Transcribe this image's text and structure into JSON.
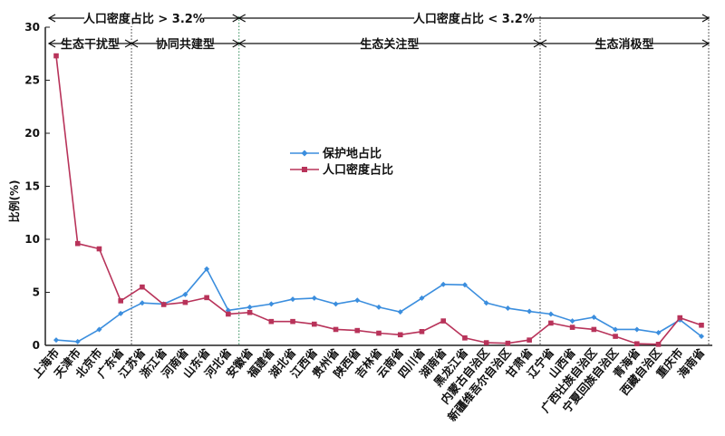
{
  "chart_data": {
    "type": "line",
    "ylabel": "比例(%)",
    "ylim": [
      0,
      30
    ],
    "yticks": [
      0,
      5,
      10,
      15,
      20,
      25,
      30
    ],
    "grid": false,
    "legend_placement": "center",
    "categories": [
      "上海市",
      "天津市",
      "北京市",
      "广东省",
      "江苏省",
      "浙江省",
      "河南省",
      "山东省",
      "河北省",
      "安徽省",
      "福建省",
      "湖北省",
      "江西省",
      "贵州省",
      "陕西省",
      "吉林省",
      "云南省",
      "四川省",
      "湖南省",
      "黑龙江省",
      "内蒙古自治区",
      "新疆维吾尔自治区",
      "甘肃省",
      "辽宁省",
      "山西省",
      "广西壮族自治区",
      "宁夏回族自治区",
      "青海省",
      "西藏自治区",
      "重庆市",
      "海南省"
    ],
    "series": [
      {
        "name": "保护地占比",
        "color": "#3b8ede",
        "marker": "diamond",
        "values": [
          0.5,
          0.35,
          1.5,
          3.0,
          4.0,
          3.9,
          4.8,
          7.2,
          3.3,
          3.6,
          3.9,
          4.35,
          4.45,
          3.9,
          4.25,
          3.6,
          3.15,
          4.45,
          5.75,
          5.7,
          4.0,
          3.5,
          3.2,
          2.95,
          2.3,
          2.65,
          1.5,
          1.5,
          1.2,
          2.4,
          0.85
        ]
      },
      {
        "name": "人口密度占比",
        "color": "#b8335a",
        "marker": "square",
        "values": [
          27.3,
          9.6,
          9.1,
          4.2,
          5.5,
          3.85,
          4.05,
          4.5,
          2.95,
          3.1,
          2.25,
          2.25,
          2.0,
          1.5,
          1.4,
          1.15,
          1.0,
          1.3,
          2.3,
          0.7,
          0.25,
          0.2,
          0.5,
          2.1,
          1.7,
          1.5,
          0.85,
          0.15,
          0.1,
          2.6,
          1.9
        ]
      }
    ],
    "groups_top": [
      {
        "label": "人口密度占比 > 3.2%",
        "from": 0,
        "to": 8
      },
      {
        "label": "人口密度占比 < 3.2%",
        "from": 8,
        "to": 30
      }
    ],
    "groups_sub": [
      {
        "label": "生态干扰型",
        "from": 0,
        "to": 3
      },
      {
        "label": "协同共建型",
        "from": 3,
        "to": 8
      },
      {
        "label": "生态关注型",
        "from": 8,
        "to": 22
      },
      {
        "label": "生态消极型",
        "from": 22,
        "to": 30
      }
    ]
  }
}
